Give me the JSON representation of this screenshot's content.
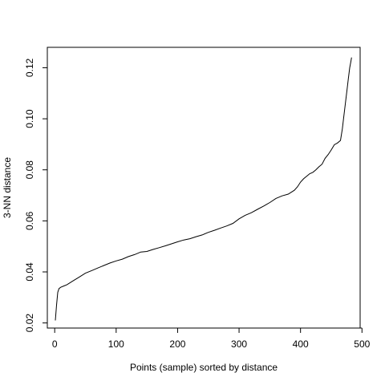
{
  "chart_data": {
    "type": "line",
    "title": "",
    "xlabel": "Points (sample) sorted by distance",
    "ylabel": "3-NN distance",
    "xlim": [
      -12,
      497
    ],
    "ylim": [
      0.018,
      0.128
    ],
    "xticks": [
      0,
      100,
      200,
      300,
      400,
      500
    ],
    "xtick_labels": [
      "0",
      "100",
      "200",
      "300",
      "400",
      "500"
    ],
    "yticks": [
      0.02,
      0.04,
      0.06,
      0.08,
      0.1,
      0.12
    ],
    "ytick_labels": [
      "0.02",
      "0.04",
      "0.06",
      "0.08",
      "0.10",
      "0.12"
    ],
    "grid": false,
    "series": [
      {
        "x": [
          1,
          3,
          5,
          7,
          10,
          15,
          20,
          30,
          40,
          50,
          60,
          70,
          80,
          90,
          100,
          110,
          120,
          130,
          140,
          150,
          160,
          170,
          180,
          190,
          200,
          210,
          220,
          230,
          240,
          250,
          260,
          270,
          280,
          290,
          300,
          310,
          320,
          330,
          340,
          350,
          360,
          370,
          380,
          390,
          395,
          400,
          405,
          410,
          415,
          420,
          425,
          430,
          435,
          440,
          445,
          450,
          455,
          460,
          465,
          468,
          470,
          473,
          476,
          478,
          480,
          482,
          483
        ],
        "values": [
          0.021,
          0.027,
          0.032,
          0.0335,
          0.034,
          0.0345,
          0.035,
          0.0365,
          0.038,
          0.0395,
          0.0405,
          0.0415,
          0.0425,
          0.0435,
          0.0443,
          0.045,
          0.046,
          0.0468,
          0.0478,
          0.048,
          0.0488,
          0.0495,
          0.0502,
          0.051,
          0.0518,
          0.0525,
          0.053,
          0.0538,
          0.0545,
          0.0555,
          0.0563,
          0.0572,
          0.058,
          0.059,
          0.0608,
          0.0622,
          0.0632,
          0.0645,
          0.0658,
          0.0672,
          0.0688,
          0.0698,
          0.0705,
          0.072,
          0.0733,
          0.0752,
          0.0765,
          0.0775,
          0.0785,
          0.079,
          0.08,
          0.0812,
          0.0822,
          0.0845,
          0.086,
          0.0878,
          0.0898,
          0.0905,
          0.0915,
          0.096,
          0.1,
          0.106,
          0.112,
          0.116,
          0.12,
          0.1225,
          0.124
        ]
      }
    ]
  }
}
